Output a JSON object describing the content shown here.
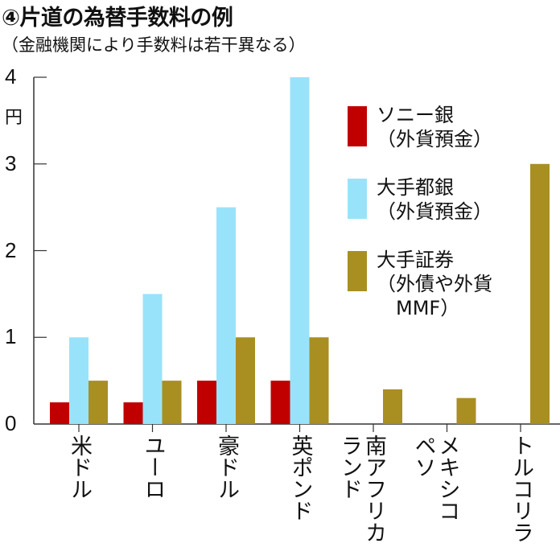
{
  "chart_data": {
    "type": "bar",
    "title": "④片道の為替手数料の例",
    "subtitle": "（金融機関により手数料は若干異なる）",
    "ylabel": "円",
    "ylim": [
      0,
      4
    ],
    "yticks": [
      "0",
      "1",
      "2",
      "3",
      "4"
    ],
    "categories": [
      "米ドル",
      "ユーロ",
      "豪ドル",
      "英ポンド",
      "南アフリカランド",
      "メキシコペソ",
      "トルコリラ"
    ],
    "category_lines": [
      [
        "米ドル"
      ],
      [
        "ユーロ"
      ],
      [
        "豪ドル"
      ],
      [
        "英ポンド"
      ],
      [
        "南アフリカ",
        "ランド"
      ],
      [
        "メキシコ",
        "ペソ"
      ],
      [
        "トルコリラ"
      ]
    ],
    "series": [
      {
        "name": "ソニー銀（外貨預金）",
        "legend_lines": [
          "ソニー銀",
          "（外貨預金）"
        ],
        "color": "#c00000",
        "values": [
          0.25,
          0.25,
          0.5,
          0.5,
          null,
          null,
          null
        ]
      },
      {
        "name": "大手都銀（外貨預金）",
        "legend_lines": [
          "大手都銀",
          "（外貨預金）"
        ],
        "color": "#99e3fa",
        "values": [
          1,
          1.5,
          2.5,
          4,
          null,
          null,
          null
        ]
      },
      {
        "name": "大手証券（外債や外貨MMF）",
        "legend_lines": [
          "大手証券",
          "（外債や外貨",
          "　MMF）"
        ],
        "color": "#a98e22",
        "values": [
          0.5,
          0.5,
          1,
          1,
          0.4,
          0.3,
          3
        ]
      }
    ],
    "grid": false,
    "legend": "top-right"
  }
}
